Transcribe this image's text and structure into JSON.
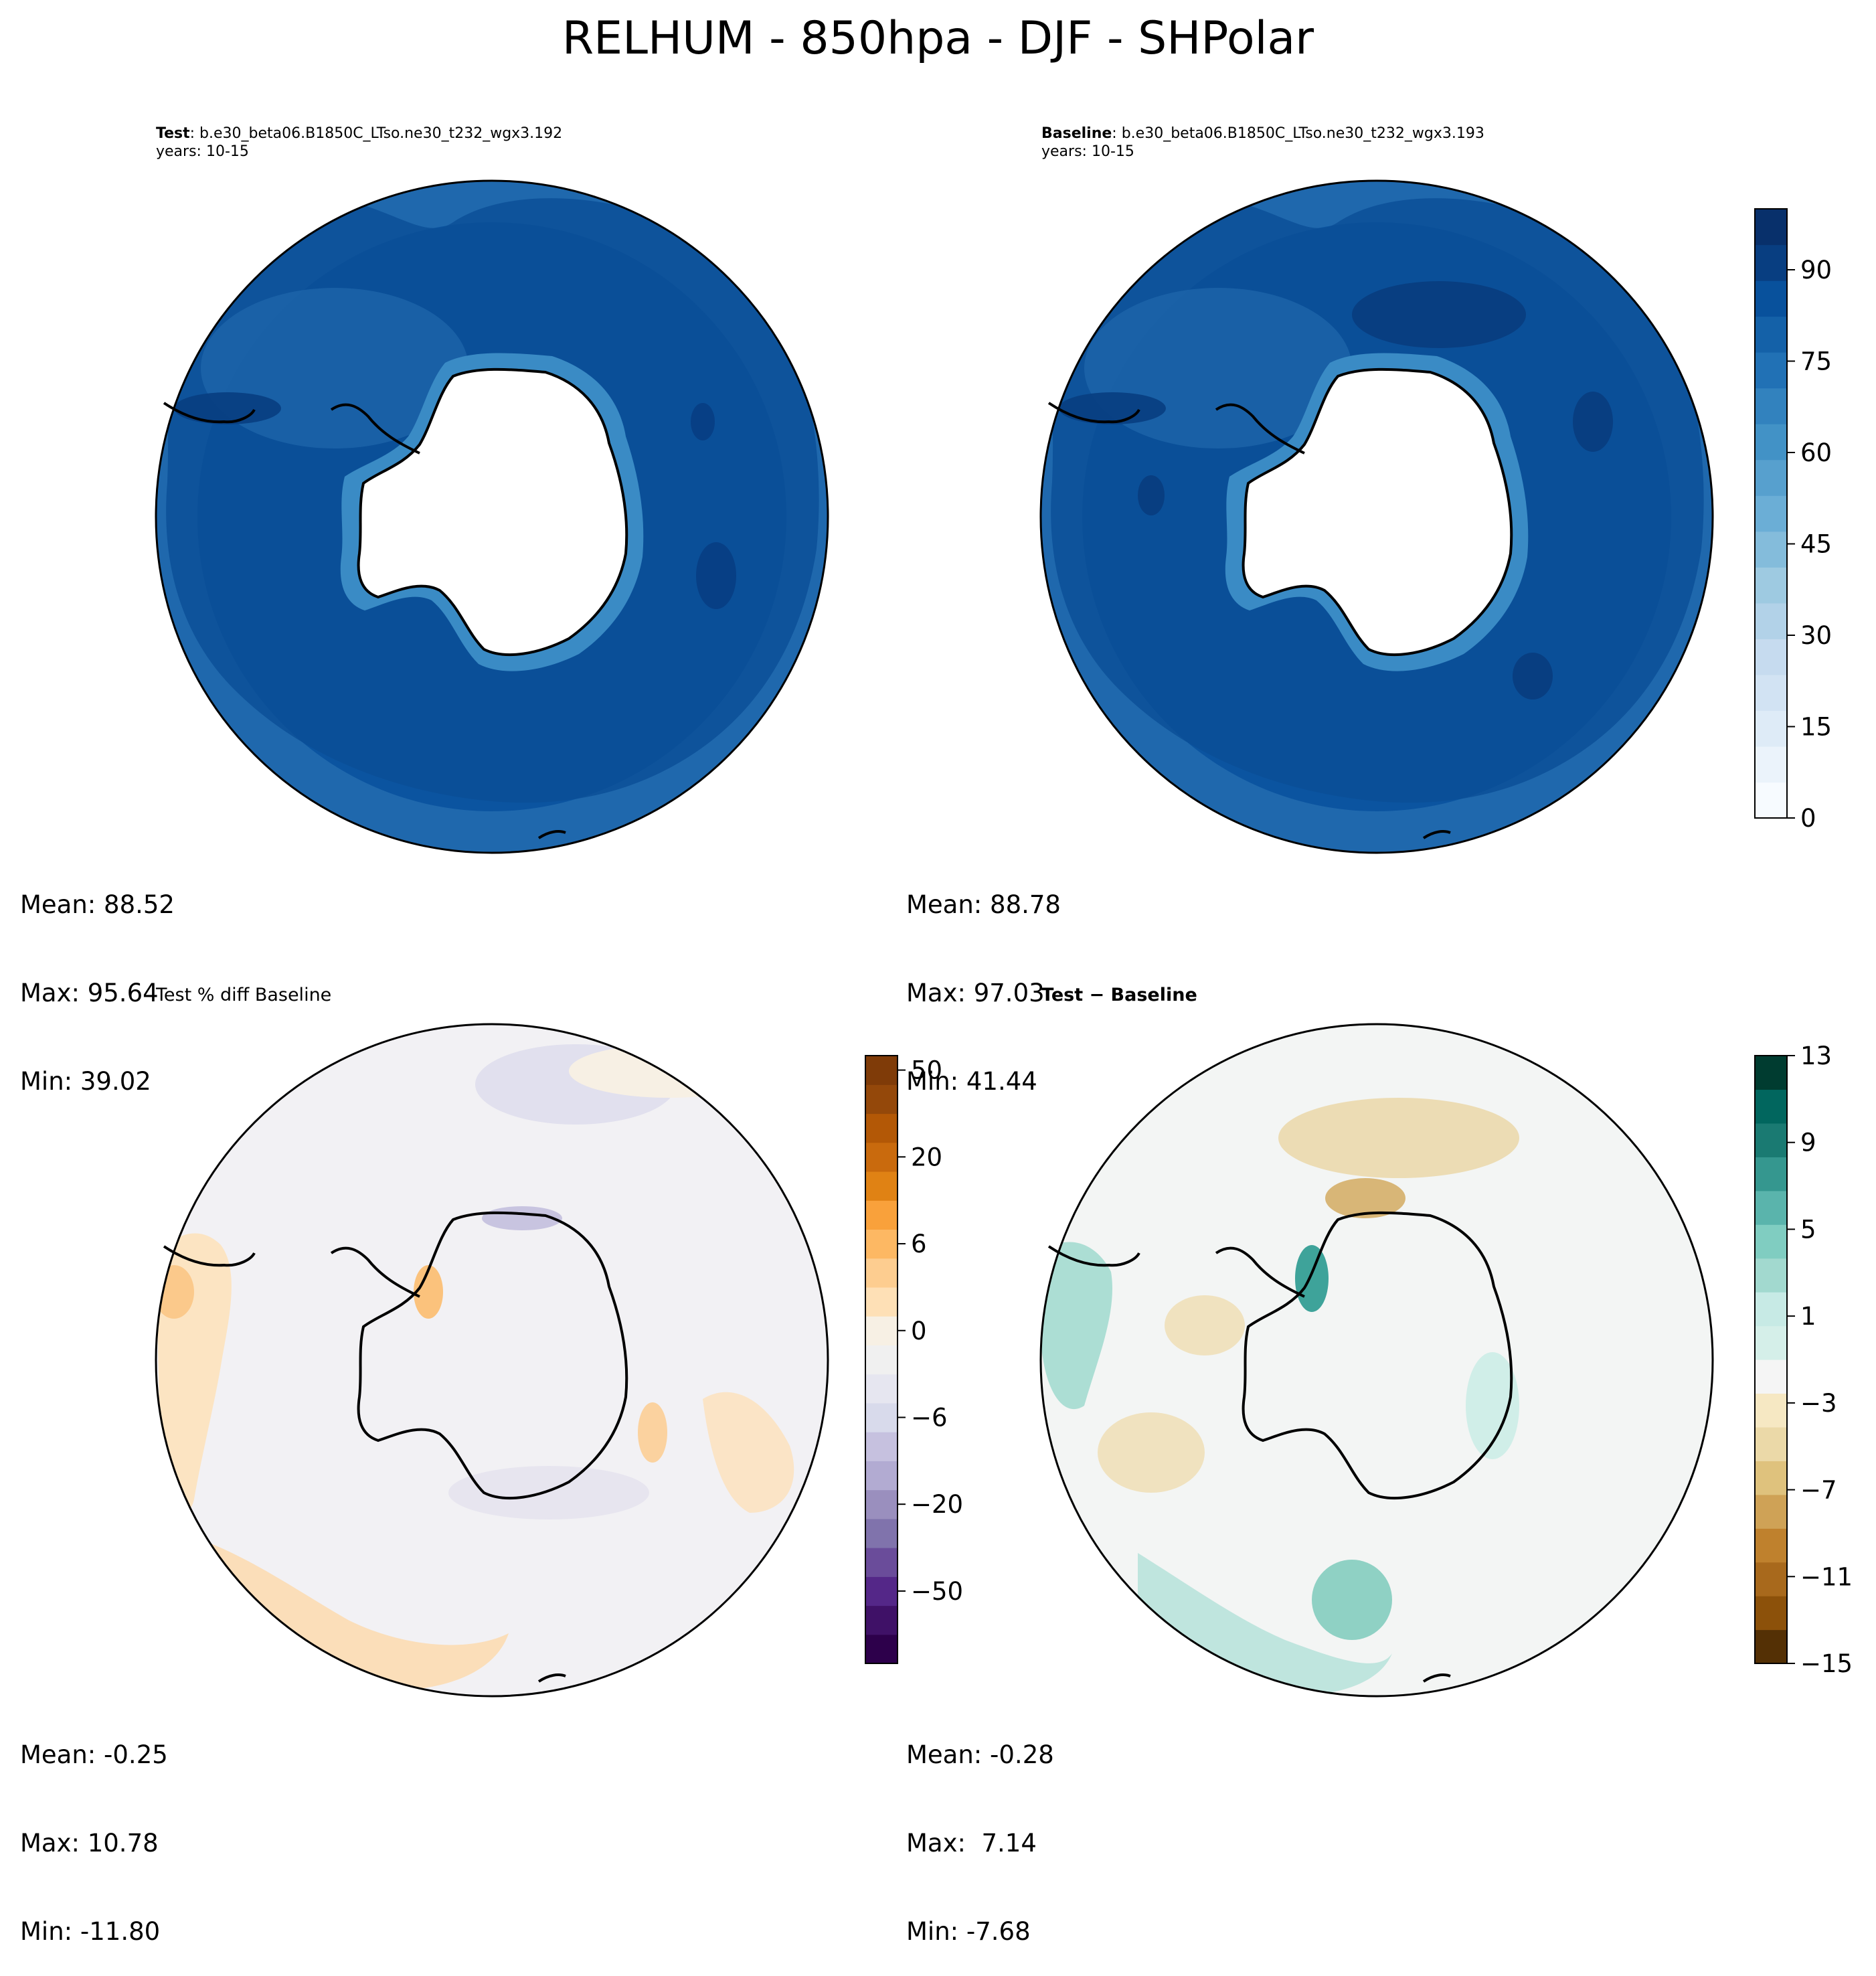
{
  "title": "RELHUM - 850hpa - DJF - SHPolar",
  "panels": {
    "test": {
      "header_bold": "Test",
      "header_rest": ": b.e30_beta06.B1850C_LTso.ne30_t232_wgx3.192",
      "years": "years: 10-15",
      "mean": "Mean: 88.52",
      "max": "Max: 95.64",
      "min": "Min: 39.02"
    },
    "baseline": {
      "header_bold": "Baseline",
      "header_rest": ": b.e30_beta06.B1850C_LTso.ne30_t232_wgx3.193",
      "years": "years: 10-15",
      "mean": "Mean: 88.78",
      "max": "Max: 97.03",
      "min": "Min: 41.44"
    },
    "pct_diff": {
      "header": "Test % diff Baseline",
      "mean": "Mean: -0.25",
      "max": "Max: 10.78",
      "min": "Min: -11.80"
    },
    "diff": {
      "header": "Test − Baseline",
      "mean": "Mean: -0.28",
      "max": "Max:  7.14",
      "min": "Min: -7.68"
    }
  },
  "colorbars": {
    "relhum": {
      "ticks": [
        "0",
        "15",
        "30",
        "45",
        "60",
        "75",
        "90"
      ],
      "tick_values": [
        0,
        15,
        30,
        45,
        60,
        75,
        90
      ],
      "range": [
        0,
        100
      ],
      "colors": [
        "#f7fbff",
        "#ebf3fb",
        "#deebf7",
        "#d2e3f3",
        "#c6dbef",
        "#b2d2e8",
        "#9ecae1",
        "#84bcdb",
        "#6baed6",
        "#57a0ce",
        "#4292c6",
        "#3282be",
        "#2171b5",
        "#1461a8",
        "#08519c",
        "#083e81",
        "#08306b"
      ]
    },
    "pct": {
      "ticks": [
        "−50",
        "−20",
        "−6",
        "0",
        "6",
        "20",
        "50"
      ],
      "colors": [
        "#2d004b",
        "#3f1167",
        "#542788",
        "#6a4c9a",
        "#8073ac",
        "#9a8fbe",
        "#b2abd2",
        "#c6c1df",
        "#d8daeb",
        "#e6e6f0",
        "#f0f0f0",
        "#f7f0e4",
        "#fee0b6",
        "#fdcd90",
        "#fdb863",
        "#f9a13b",
        "#e08214",
        "#c96a0d",
        "#b35806",
        "#94480a",
        "#7f3b08"
      ]
    },
    "diff": {
      "ticks": [
        "−15",
        "−11",
        "−7",
        "−3",
        "1",
        "5",
        "9",
        "13"
      ],
      "colors": [
        "#543005",
        "#8c510a",
        "#a8691c",
        "#bf812d",
        "#cfa256",
        "#dfc27d",
        "#ebd9a8",
        "#f6e8c3",
        "#f5f5f5",
        "#d5efe9",
        "#c7eae5",
        "#a2d9cf",
        "#80cdc1",
        "#5ab4ac",
        "#35978f",
        "#1a7a72",
        "#01665e",
        "#003c30"
      ]
    }
  }
}
